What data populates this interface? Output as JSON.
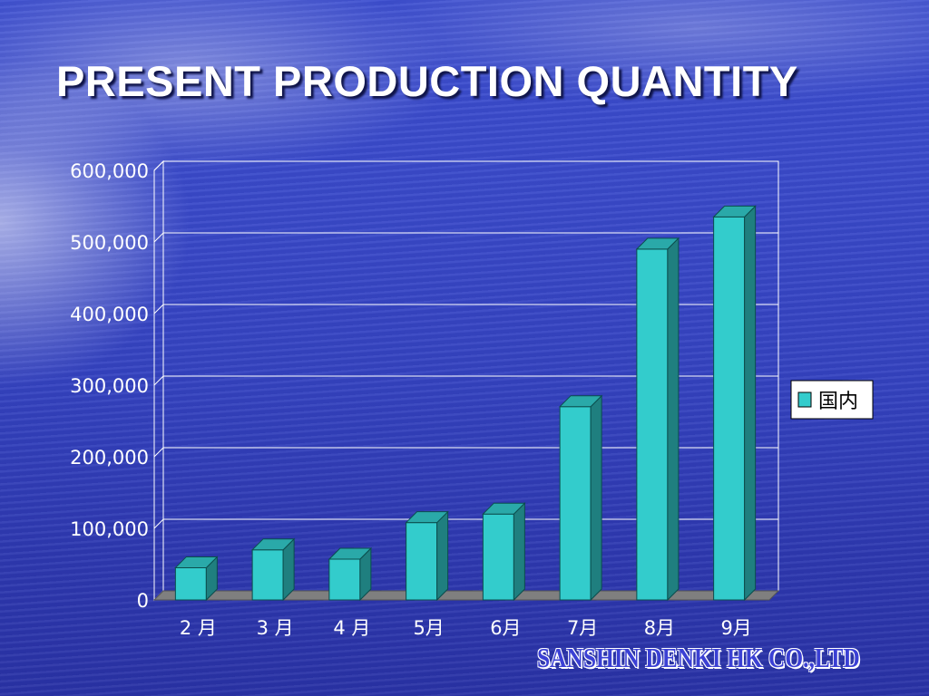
{
  "slide": {
    "title": "PRESENT PRODUCTION QUANTITY",
    "company": "SANSHIN DENKI HK CO.,LTD"
  },
  "chart_data": {
    "type": "bar",
    "categories": [
      "2 月",
      "3 月",
      "4 月",
      "5月",
      "6月",
      "7月",
      "8月",
      "9月"
    ],
    "series": [
      {
        "name": "国内",
        "values": [
          45000,
          70000,
          57000,
          108000,
          120000,
          270000,
          490000,
          535000
        ],
        "color": "#33cccc"
      }
    ],
    "ylim": [
      0,
      600000
    ],
    "yticks": [
      0,
      100000,
      200000,
      300000,
      400000,
      500000,
      600000
    ],
    "ytick_labels": [
      "0",
      "100,000",
      "200,000",
      "300,000",
      "400,000",
      "500,000",
      "600,000"
    ],
    "grid": true,
    "legend_position": "right",
    "style": "3d-bar"
  }
}
